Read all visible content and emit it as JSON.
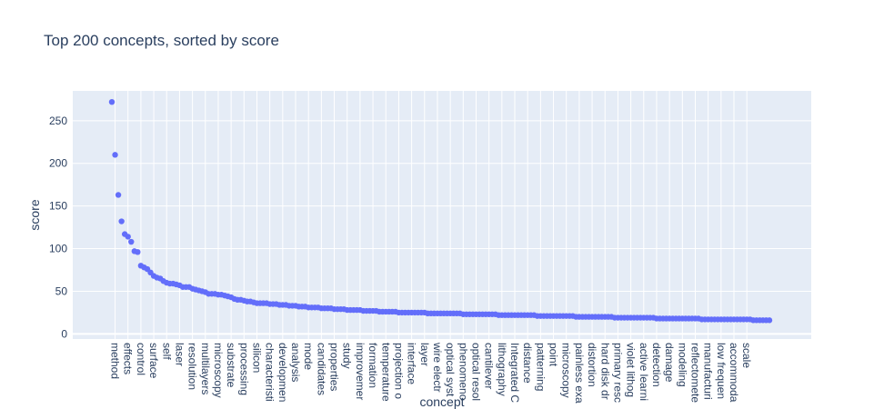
{
  "chart_data": {
    "type": "scatter",
    "title": "Top 200 concepts, sorted by score",
    "xlabel": "concept",
    "ylabel": "score",
    "ylim": [
      0,
      285
    ],
    "y_ticks": [
      0,
      50,
      100,
      150,
      200,
      250
    ],
    "grid": true,
    "marker_color": "#636efa",
    "plot_background": "#e5ecf6",
    "x_labels_visible": [
      "method",
      "effects",
      "control",
      "surface",
      "self",
      "laser",
      "resolution",
      "multilayers",
      "microscopy",
      "substrate",
      "processing",
      "silicon",
      "characteristi",
      "developmen",
      "analysis",
      "mode",
      "candidates",
      "properties",
      "study",
      "improvemer",
      "formation",
      "temperature",
      "projection o",
      "interface",
      "layer",
      "wire electr",
      "optical syst",
      "phenomeno",
      "optical resol",
      "cantilever",
      "lithography",
      "Integrated C",
      "distance",
      "patterning",
      "point",
      "microscopy",
      "painless exa",
      "distortion",
      "hard disk dr",
      "primary resc",
      "violet lithog",
      "active learni",
      "detection",
      "damage",
      "modeling",
      "reflectomete",
      "manufacturi",
      "low frequen",
      "accommoda",
      "scale"
    ],
    "y": [
      272,
      210,
      163,
      132,
      117,
      114,
      108,
      97,
      96,
      80,
      78,
      76,
      72,
      68,
      66,
      65,
      62,
      60,
      59,
      59,
      58,
      57,
      55,
      55,
      55,
      53,
      52,
      51,
      50,
      49,
      47,
      47,
      47,
      46,
      46,
      45,
      44,
      43,
      41,
      40,
      40,
      39,
      38,
      38,
      37,
      36,
      36,
      36,
      36,
      35,
      35,
      35,
      34,
      34,
      34,
      33,
      33,
      33,
      32,
      32,
      32,
      31,
      31,
      31,
      31,
      30,
      30,
      30,
      30,
      29,
      29,
      29,
      29,
      28,
      28,
      28,
      28,
      28,
      27,
      27,
      27,
      27,
      27,
      26,
      26,
      26,
      26,
      26,
      26,
      25,
      25,
      25,
      25,
      25,
      25,
      25,
      25,
      25,
      24,
      24,
      24,
      24,
      24,
      24,
      24,
      24,
      24,
      24,
      24,
      23,
      23,
      23,
      23,
      23,
      23,
      23,
      23,
      23,
      23,
      23,
      22,
      22,
      22,
      22,
      22,
      22,
      22,
      22,
      22,
      22,
      22,
      22,
      21,
      21,
      21,
      21,
      21,
      21,
      21,
      21,
      21,
      21,
      21,
      21,
      20,
      20,
      20,
      20,
      20,
      20,
      20,
      20,
      20,
      20,
      20,
      20,
      19,
      19,
      19,
      19,
      19,
      19,
      19,
      19,
      19,
      19,
      19,
      19,
      19,
      18,
      18,
      18,
      18,
      18,
      18,
      18,
      18,
      18,
      18,
      18,
      18,
      18,
      18,
      17,
      17,
      17,
      17,
      17,
      17,
      17,
      17,
      17,
      17,
      17,
      17,
      17,
      17,
      17,
      17,
      16,
      16,
      16,
      16,
      16,
      16
    ]
  }
}
